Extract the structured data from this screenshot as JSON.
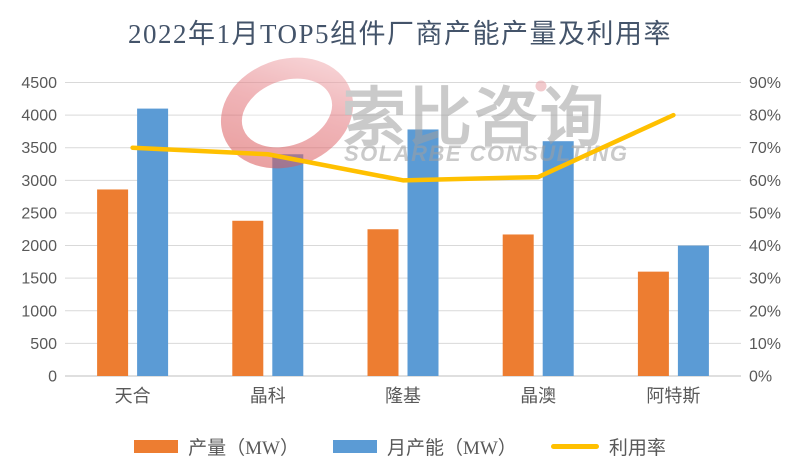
{
  "title": "2022年1月TOP5组件厂商产能产量及利用率",
  "watermark": {
    "cn": "索比咨询",
    "en": "SOLARBE CONSULTING"
  },
  "colors": {
    "production_bar": "#ED7D31",
    "capacity_bar": "#5B9BD5",
    "utilization_line": "#FFC000",
    "gridline": "#D9D9D9",
    "axis_line": "#BFBFBF",
    "axis_text": "#595959",
    "title_text": "#44546A",
    "watermark_gray": "#A0A0A0",
    "watermark_red": "#D85050",
    "watermark_pink": "#F2B6BA"
  },
  "chart_data": {
    "type": "bar",
    "subtype": "combo-bar-line-dual-axis",
    "title": "2022年1月TOP5组件厂商产能产量及利用率",
    "categories": [
      "天合",
      "晶科",
      "隆基",
      "晶澳",
      "阿特斯"
    ],
    "series": [
      {
        "name": "产量（MW）",
        "type": "bar",
        "axis": "left",
        "color": "#ED7D31",
        "values": [
          2860,
          2380,
          2250,
          2170,
          1600
        ]
      },
      {
        "name": "月产能（MW）",
        "type": "bar",
        "axis": "left",
        "color": "#5B9BD5",
        "values": [
          4100,
          3400,
          3780,
          3600,
          2000
        ]
      },
      {
        "name": "利用率",
        "type": "line",
        "axis": "right",
        "color": "#FFC000",
        "unit": "%",
        "values": [
          70,
          68,
          60,
          61,
          80
        ]
      }
    ],
    "left_axis": {
      "min": 0,
      "max": 4500,
      "step": 500,
      "tick_labels": [
        "0",
        "500",
        "1000",
        "1500",
        "2000",
        "2500",
        "3000",
        "3500",
        "4000",
        "4500"
      ]
    },
    "right_axis": {
      "min": 0,
      "max": 90,
      "step": 10,
      "unit": "%",
      "tick_labels": [
        "0%",
        "10%",
        "20%",
        "30%",
        "40%",
        "50%",
        "60%",
        "70%",
        "80%",
        "90%"
      ]
    },
    "xlabel": "",
    "ylabel": "",
    "grid": "horizontal",
    "legend_position": "bottom"
  }
}
